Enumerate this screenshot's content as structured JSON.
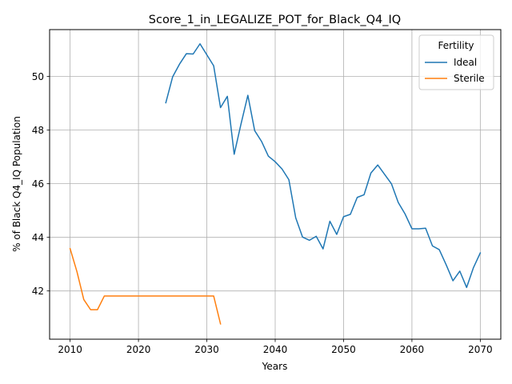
{
  "chart_data": {
    "type": "line",
    "title": "Score_1_in_LEGALIZE_POT_for_Black_Q4_IQ",
    "xlabel": "Years",
    "ylabel": "% of Black Q4_IQ Population",
    "xlim": [
      2007.0,
      2073.0
    ],
    "ylim": [
      40.2,
      51.75
    ],
    "xticks": [
      2010,
      2020,
      2030,
      2040,
      2050,
      2060,
      2070
    ],
    "yticks": [
      42,
      44,
      46,
      48,
      50
    ],
    "grid": true,
    "legend": {
      "title": "Fertility",
      "placement": "top-right"
    },
    "series": [
      {
        "name": "Ideal",
        "color": "#1f77b4",
        "x": [
          2024,
          2025,
          2026,
          2027,
          2028,
          2029,
          2030,
          2031,
          2032,
          2033,
          2034,
          2035,
          2036,
          2037,
          2038,
          2039,
          2040,
          2041,
          2042,
          2043,
          2044,
          2045,
          2046,
          2047,
          2048,
          2049,
          2050,
          2051,
          2052,
          2053,
          2054,
          2055,
          2056,
          2057,
          2058,
          2059,
          2060,
          2061,
          2062,
          2063,
          2064,
          2065,
          2066,
          2067,
          2068,
          2069,
          2070
        ],
        "y": [
          49.02,
          49.99,
          50.46,
          50.85,
          50.84,
          51.22,
          50.81,
          50.4,
          48.84,
          49.26,
          47.1,
          48.23,
          49.3,
          47.98,
          47.58,
          47.03,
          46.82,
          46.55,
          46.15,
          44.73,
          44.01,
          43.89,
          44.04,
          43.57,
          44.6,
          44.11,
          44.77,
          44.86,
          45.49,
          45.59,
          46.4,
          46.7,
          46.35,
          46.0,
          45.3,
          44.87,
          44.32,
          44.32,
          44.34,
          43.68,
          43.54,
          42.98,
          42.38,
          42.74,
          42.13,
          42.87,
          43.42
        ]
      },
      {
        "name": "Sterile",
        "color": "#ff7f0e",
        "x": [
          2010,
          2011,
          2012,
          2013,
          2014,
          2015,
          2016,
          2017,
          2018,
          2019,
          2020,
          2021,
          2022,
          2023,
          2024,
          2025,
          2026,
          2027,
          2028,
          2029,
          2030,
          2031,
          2032
        ],
        "y": [
          43.58,
          42.72,
          41.68,
          41.3,
          41.3,
          41.81,
          41.81,
          41.81,
          41.81,
          41.81,
          41.81,
          41.81,
          41.81,
          41.81,
          41.81,
          41.81,
          41.81,
          41.81,
          41.81,
          41.81,
          41.81,
          41.81,
          40.77
        ]
      }
    ]
  }
}
